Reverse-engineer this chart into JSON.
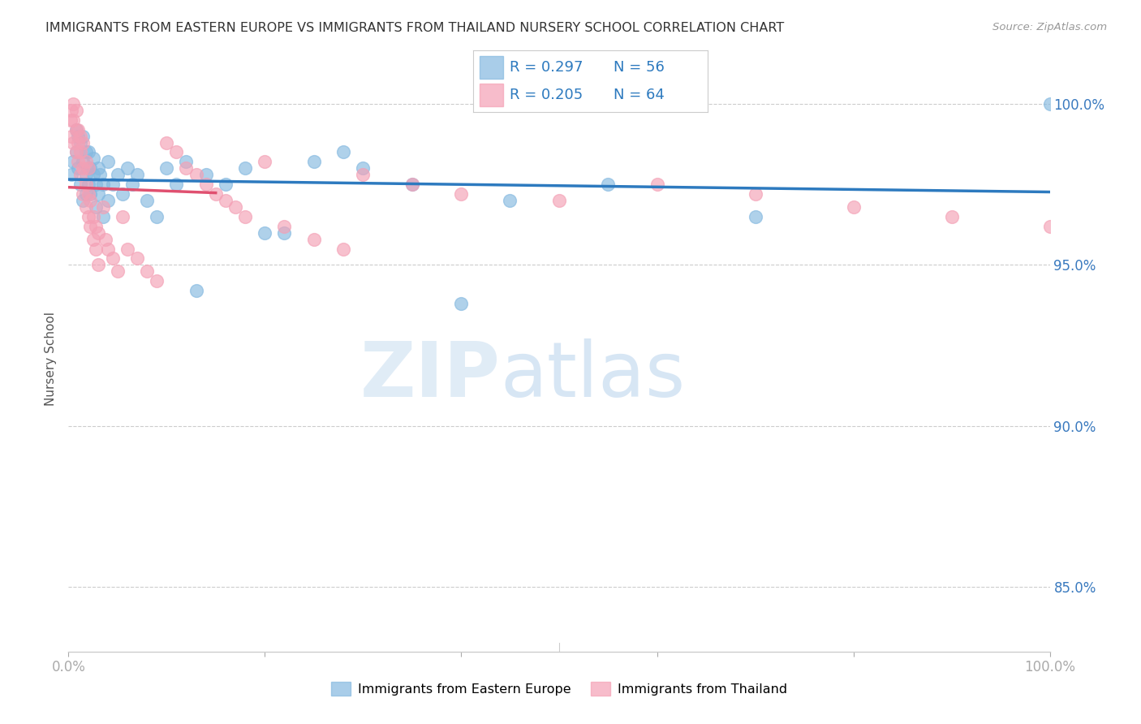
{
  "title": "IMMIGRANTS FROM EASTERN EUROPE VS IMMIGRANTS FROM THAILAND NURSERY SCHOOL CORRELATION CHART",
  "source": "Source: ZipAtlas.com",
  "ylabel": "Nursery School",
  "legend_blue_label": "Immigrants from Eastern Europe",
  "legend_pink_label": "Immigrants from Thailand",
  "blue_color": "#85b9e0",
  "pink_color": "#f4a0b5",
  "blue_line_color": "#2d7abf",
  "pink_line_color": "#e05070",
  "blue_r": "R = 0.297",
  "blue_n": "N = 56",
  "pink_r": "R = 0.205",
  "pink_n": "N = 64",
  "blue_scatter_x": [
    0.3,
    0.5,
    0.8,
    0.8,
    1.0,
    1.0,
    1.2,
    1.2,
    1.5,
    1.5,
    1.5,
    1.8,
    1.8,
    1.8,
    2.0,
    2.0,
    2.0,
    2.2,
    2.2,
    2.5,
    2.5,
    2.8,
    2.8,
    3.0,
    3.0,
    3.2,
    3.5,
    3.5,
    4.0,
    4.0,
    4.5,
    5.0,
    5.5,
    6.0,
    6.5,
    7.0,
    8.0,
    9.0,
    10.0,
    11.0,
    12.0,
    13.0,
    14.0,
    16.0,
    18.0,
    20.0,
    22.0,
    25.0,
    28.0,
    30.0,
    35.0,
    40.0,
    45.0,
    55.0,
    70.0,
    100.0
  ],
  "blue_scatter_y": [
    97.8,
    98.2,
    98.5,
    99.2,
    98.0,
    99.0,
    97.5,
    98.8,
    97.0,
    98.2,
    99.0,
    97.8,
    98.5,
    97.2,
    98.0,
    97.5,
    98.5,
    97.2,
    98.0,
    97.8,
    98.3,
    96.8,
    97.5,
    97.2,
    98.0,
    97.8,
    96.5,
    97.5,
    97.0,
    98.2,
    97.5,
    97.8,
    97.2,
    98.0,
    97.5,
    97.8,
    97.0,
    96.5,
    98.0,
    97.5,
    98.2,
    94.2,
    97.8,
    97.5,
    98.0,
    96.0,
    96.0,
    98.2,
    98.5,
    98.0,
    97.5,
    93.8,
    97.0,
    97.5,
    96.5,
    100.0
  ],
  "pink_scatter_x": [
    0.2,
    0.3,
    0.3,
    0.5,
    0.5,
    0.5,
    0.8,
    0.8,
    0.8,
    1.0,
    1.0,
    1.0,
    1.2,
    1.2,
    1.2,
    1.5,
    1.5,
    1.5,
    1.8,
    1.8,
    1.8,
    2.0,
    2.0,
    2.0,
    2.2,
    2.2,
    2.5,
    2.5,
    2.8,
    2.8,
    3.0,
    3.0,
    3.5,
    3.8,
    4.0,
    4.5,
    5.0,
    5.5,
    6.0,
    7.0,
    8.0,
    9.0,
    10.0,
    11.0,
    12.0,
    13.0,
    14.0,
    15.0,
    16.0,
    17.0,
    18.0,
    20.0,
    22.0,
    25.0,
    28.0,
    30.0,
    35.0,
    40.0,
    50.0,
    60.0,
    70.0,
    80.0,
    90.0,
    100.0
  ],
  "pink_scatter_y": [
    99.5,
    99.0,
    99.8,
    98.8,
    99.5,
    100.0,
    98.5,
    99.2,
    99.8,
    98.2,
    98.8,
    99.2,
    97.8,
    98.5,
    99.0,
    97.2,
    98.0,
    98.8,
    96.8,
    97.5,
    98.2,
    96.5,
    97.2,
    98.0,
    96.2,
    97.0,
    95.8,
    96.5,
    95.5,
    96.2,
    95.0,
    96.0,
    96.8,
    95.8,
    95.5,
    95.2,
    94.8,
    96.5,
    95.5,
    95.2,
    94.8,
    94.5,
    98.8,
    98.5,
    98.0,
    97.8,
    97.5,
    97.2,
    97.0,
    96.8,
    96.5,
    98.2,
    96.2,
    95.8,
    95.5,
    97.8,
    97.5,
    97.2,
    97.0,
    97.5,
    97.2,
    96.8,
    96.5,
    96.2
  ],
  "xlim": [
    0,
    100
  ],
  "ylim": [
    83,
    101.2
  ],
  "y_ticks": [
    85.0,
    90.0,
    95.0,
    100.0
  ],
  "watermark_zip": "ZIP",
  "watermark_atlas": "atlas",
  "background_color": "#ffffff"
}
